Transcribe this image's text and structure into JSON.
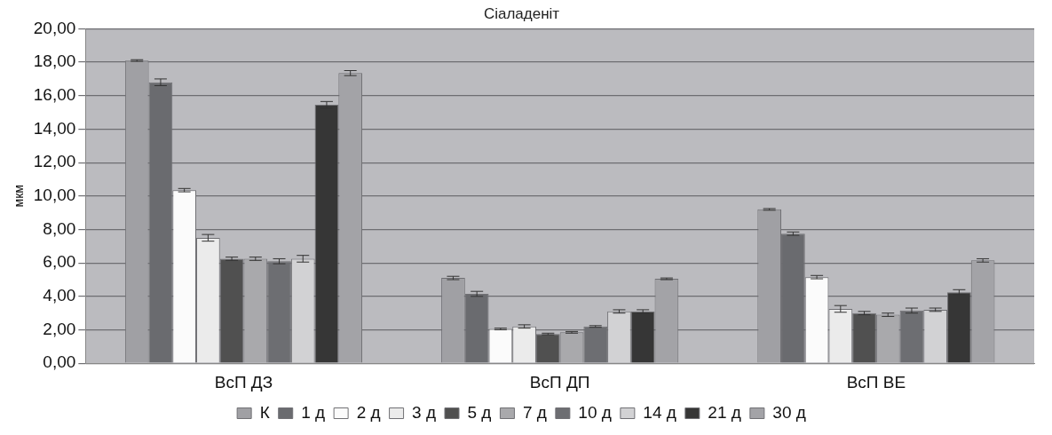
{
  "chart_data": {
    "type": "bar",
    "title": "Сіаладеніт",
    "ylabel": "мкм",
    "categories": [
      "ВсП ДЗ",
      "ВсП ДП",
      "ВсП ВЕ"
    ],
    "series": [
      {
        "name": "К",
        "color": "#a0a0a4",
        "values": [
          18.1,
          5.1,
          9.2
        ],
        "errors": [
          0.05,
          0.1,
          0.05
        ]
      },
      {
        "name": "1 д",
        "color": "#6a6b6f",
        "values": [
          16.8,
          4.15,
          7.75
        ],
        "errors": [
          0.2,
          0.15,
          0.1
        ]
      },
      {
        "name": "2 д",
        "color": "#fbfbfb",
        "values": [
          10.35,
          2.05,
          5.15
        ],
        "errors": [
          0.1,
          0.05,
          0.1
        ]
      },
      {
        "name": "3 д",
        "color": "#ebebeb",
        "values": [
          7.5,
          2.2,
          3.25
        ],
        "errors": [
          0.2,
          0.1,
          0.2
        ]
      },
      {
        "name": "5 д",
        "color": "#505050",
        "values": [
          6.25,
          1.75,
          3.0
        ],
        "errors": [
          0.1,
          0.05,
          0.1
        ]
      },
      {
        "name": "7 д",
        "color": "#a9a9ac",
        "values": [
          6.25,
          1.85,
          2.9
        ],
        "errors": [
          0.1,
          0.05,
          0.1
        ]
      },
      {
        "name": "10 д",
        "color": "#6d6e72",
        "values": [
          6.1,
          2.2,
          3.15
        ],
        "errors": [
          0.15,
          0.05,
          0.15
        ]
      },
      {
        "name": "14 д",
        "color": "#d2d2d4",
        "values": [
          6.25,
          3.1,
          3.2
        ],
        "errors": [
          0.2,
          0.1,
          0.1
        ]
      },
      {
        "name": "21 д",
        "color": "#363636",
        "values": [
          15.45,
          3.1,
          4.25
        ],
        "errors": [
          0.2,
          0.1,
          0.15
        ]
      },
      {
        "name": "30 д",
        "color": "#a3a3a7",
        "values": [
          17.35,
          5.05,
          6.15
        ],
        "errors": [
          0.15,
          0.05,
          0.1
        ]
      }
    ],
    "ylim": [
      0,
      20
    ],
    "yticks": [
      {
        "value": 0,
        "label": "0,00"
      },
      {
        "value": 2,
        "label": "2,00"
      },
      {
        "value": 4,
        "label": "4,00"
      },
      {
        "value": 6,
        "label": "6,00"
      },
      {
        "value": 8,
        "label": "8,00"
      },
      {
        "value": 10,
        "label": "10,00"
      },
      {
        "value": 12,
        "label": "12,00"
      },
      {
        "value": 14,
        "label": "14,00"
      },
      {
        "value": 16,
        "label": "16,00"
      },
      {
        "value": 18,
        "label": "18,00"
      },
      {
        "value": 20,
        "label": "20,00"
      }
    ],
    "grid": "y",
    "legend": "bottom"
  }
}
